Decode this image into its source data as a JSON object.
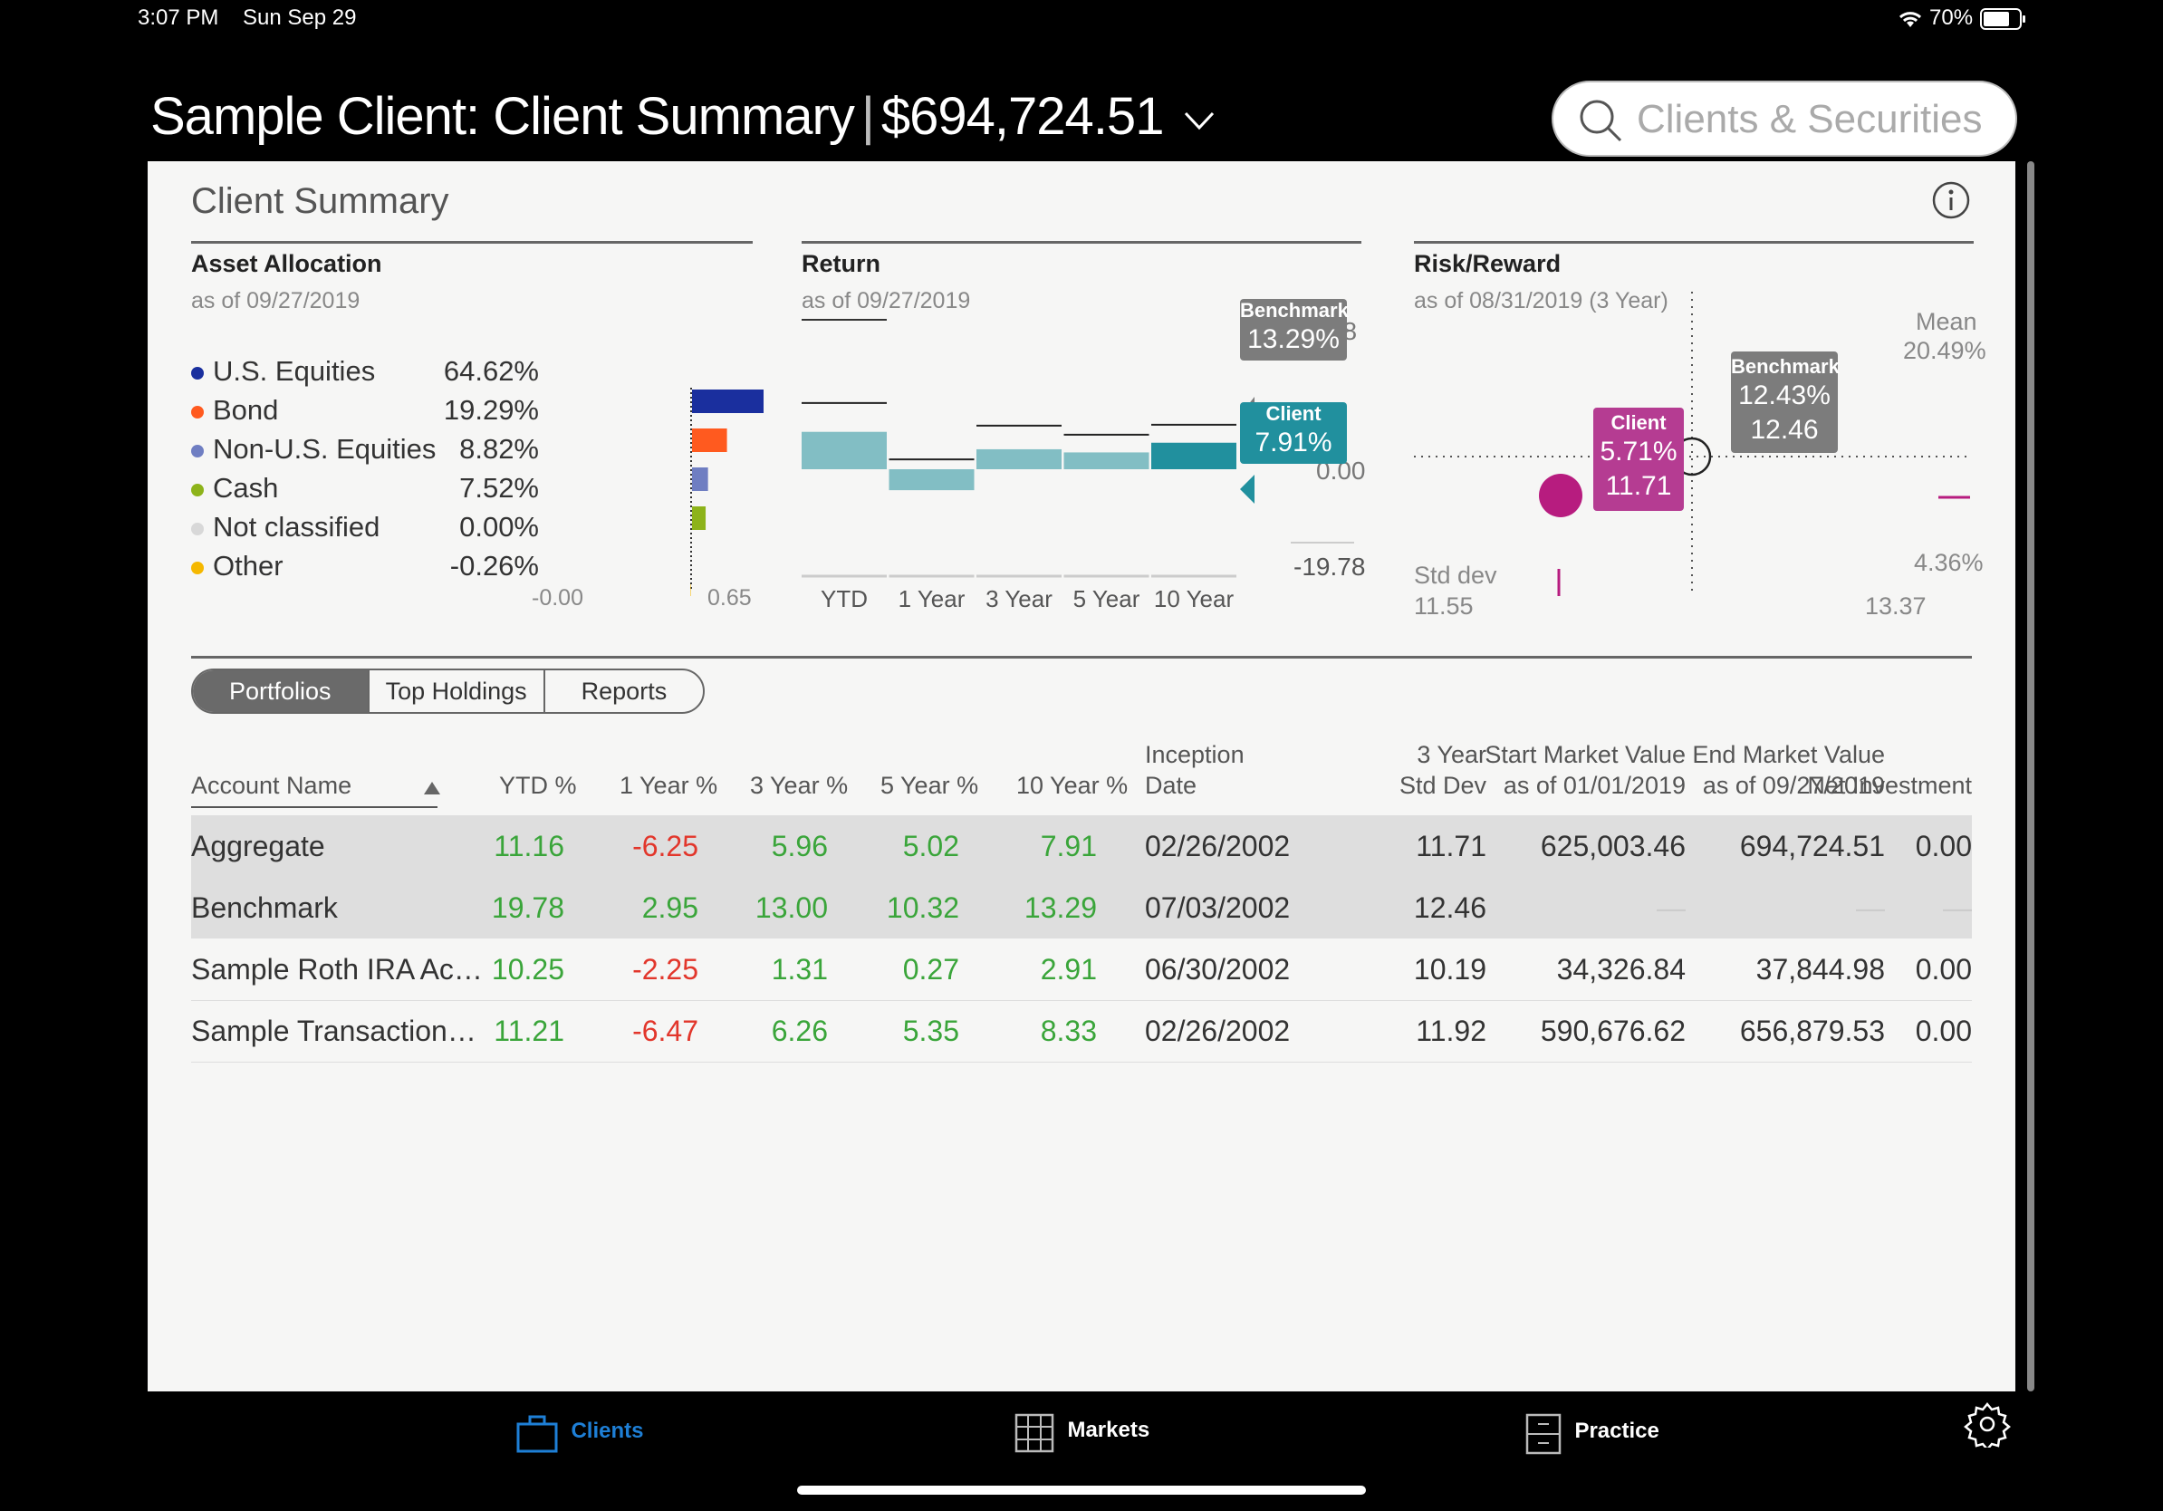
{
  "status": {
    "time": "3:07 PM",
    "date": "Sun Sep 29",
    "battery": "70%"
  },
  "header": {
    "title": "Sample Client: Client Summary",
    "value": "$694,724.51"
  },
  "search": {
    "placeholder": "Clients & Securities"
  },
  "panel": {
    "title": "Client Summary"
  },
  "asset_allocation": {
    "title": "Asset Allocation",
    "as_of": "as of 09/27/2019",
    "items": [
      {
        "label": "U.S. Equities",
        "pct": "64.62%",
        "value": 64.62,
        "color": "#1a2f9e"
      },
      {
        "label": "Bond",
        "pct": "19.29%",
        "value": 19.29,
        "color": "#ff5a1f"
      },
      {
        "label": "Non-U.S. Equities",
        "pct": "8.82%",
        "value": 8.82,
        "color": "#6f7ec2"
      },
      {
        "label": "Cash",
        "pct": "7.52%",
        "value": 7.52,
        "color": "#8db31a"
      },
      {
        "label": "Not classified",
        "pct": "0.00%",
        "value": 0.0,
        "color": "#d8d8d8"
      },
      {
        "label": "Other",
        "pct": "-0.26%",
        "value": -0.26,
        "color": "#f5b800"
      }
    ],
    "axis_min": "-0.00",
    "axis_max": "0.65"
  },
  "return": {
    "title": "Return",
    "as_of": "as of 09/27/2019",
    "categories": [
      "YTD",
      "1 Year",
      "3 Year",
      "5 Year",
      "10 Year"
    ],
    "client": [
      11.16,
      -6.25,
      5.96,
      5.02,
      7.91
    ],
    "benchmark": [
      19.78,
      2.95,
      13.0,
      10.32,
      13.29
    ],
    "ymax_label": "19.78",
    "zero_label": "0.00",
    "ymin_label": "-19.78",
    "benchmark_tag": {
      "title": "Benchmark",
      "value": "13.29%"
    },
    "client_tag": {
      "title": "Client",
      "value": "7.91%"
    }
  },
  "risk_reward": {
    "title": "Risk/Reward",
    "as_of": "as of 08/31/2019 (3 Year)",
    "mean_label": "Mean",
    "mean_max": "20.49%",
    "mean_min": "4.36%",
    "std_label": "Std dev",
    "std_min": "11.55",
    "std_max": "13.37",
    "client": {
      "title": "Client",
      "ret": "5.71%",
      "std": "11.71"
    },
    "benchmark": {
      "title": "Benchmark",
      "ret": "12.43%",
      "std": "12.46"
    }
  },
  "tabs": [
    "Portfolios",
    "Top Holdings",
    "Reports"
  ],
  "table": {
    "headers": {
      "account": "Account Name",
      "ytd": "YTD %",
      "y1": "1 Year %",
      "y3": "3 Year %",
      "y5": "5 Year %",
      "y10": "10 Year %",
      "inception_1": "Inception",
      "inception_2": "Date",
      "std_1": "3 Year",
      "std_2": "Std Dev",
      "start_1": "Start Market Value",
      "start_2": "as of 01/01/2019",
      "end_1": "End Market Value",
      "end_2": "as of 09/27/2019",
      "net": "Net Investment"
    },
    "rows": [
      {
        "name": "Aggregate",
        "ytd": "11.16",
        "y1": "-6.25",
        "y3": "5.96",
        "y5": "5.02",
        "y10": "7.91",
        "inception": "02/26/2002",
        "std": "11.71",
        "start": "625,003.46",
        "end": "694,724.51",
        "net": "0.00"
      },
      {
        "name": "Benchmark",
        "ytd": "19.78",
        "y1": "2.95",
        "y3": "13.00",
        "y5": "10.32",
        "y10": "13.29",
        "inception": "07/03/2002",
        "std": "12.46",
        "start": "—",
        "end": "—",
        "net": "—"
      },
      {
        "name": "Sample Roth IRA Ac…",
        "ytd": "10.25",
        "y1": "-2.25",
        "y3": "1.31",
        "y5": "0.27",
        "y10": "2.91",
        "inception": "06/30/2002",
        "std": "10.19",
        "start": "34,326.84",
        "end": "37,844.98",
        "net": "0.00"
      },
      {
        "name": "Sample Transaction…",
        "ytd": "11.21",
        "y1": "-6.47",
        "y3": "6.26",
        "y5": "5.35",
        "y10": "8.33",
        "inception": "02/26/2002",
        "std": "11.92",
        "start": "590,676.62",
        "end": "656,879.53",
        "net": "0.00"
      }
    ]
  },
  "bottom_nav": {
    "clients": "Clients",
    "markets": "Markets",
    "practice": "Practice",
    "accent": "#1e7fd6"
  }
}
